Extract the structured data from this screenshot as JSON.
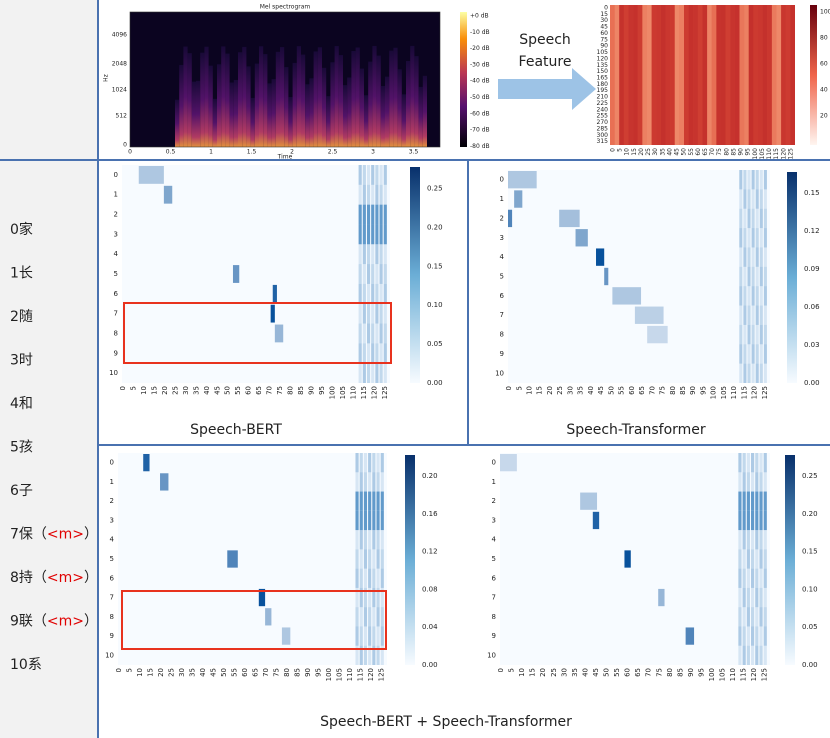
{
  "spectrogram": {
    "title": "Mel spectrogram",
    "y_label": "Hz",
    "x_label": "Time",
    "yticks": [
      "4096",
      "2048",
      "1024",
      "512",
      "0"
    ],
    "xticks": [
      "0",
      "0.5",
      "1",
      "1.5",
      "2",
      "2.5",
      "3",
      "3.5"
    ],
    "colorbar": [
      "+0 dB",
      "-10 dB",
      "-20 dB",
      "-30 dB",
      "-40 dB",
      "-50 dB",
      "-60 dB",
      "-70 dB",
      "-80 dB"
    ]
  },
  "arrow_label": [
    "Speech",
    "Feature"
  ],
  "feature": {
    "yticks": [
      "0",
      "15",
      "30",
      "45",
      "60",
      "75",
      "90",
      "105",
      "120",
      "135",
      "150",
      "165",
      "180",
      "195",
      "210",
      "225",
      "240",
      "255",
      "270",
      "285",
      "300",
      "315"
    ],
    "xticks": [
      "0",
      "5",
      "10",
      "15",
      "20",
      "25",
      "30",
      "35",
      "40",
      "45",
      "50",
      "55",
      "60",
      "65",
      "70",
      "75",
      "80",
      "85",
      "90",
      "95",
      "100",
      "105",
      "110",
      "115",
      "120",
      "125"
    ],
    "colorbar": [
      "100",
      "80",
      "60",
      "40",
      "20"
    ]
  },
  "tokens": [
    {
      "text": "0家"
    },
    {
      "text": "1长"
    },
    {
      "text": "2随"
    },
    {
      "text": "3时"
    },
    {
      "text": "4和"
    },
    {
      "text": "5孩"
    },
    {
      "text": "6子"
    },
    {
      "text": "7保",
      "mask": "<m>"
    },
    {
      "text": "8持",
      "mask": "<m>"
    },
    {
      "text": "9联",
      "mask": "<m>"
    },
    {
      "text": "10系"
    }
  ],
  "mask_brackets": [
    "（",
    "）"
  ],
  "heatmap_rows": [
    "0",
    "1",
    "2",
    "3",
    "4",
    "5",
    "6",
    "7",
    "8",
    "9",
    "10"
  ],
  "heatmap_cols": [
    "0",
    "5",
    "10",
    "15",
    "20",
    "25",
    "30",
    "35",
    "40",
    "45",
    "50",
    "55",
    "60",
    "65",
    "70",
    "75",
    "80",
    "85",
    "90",
    "95",
    "100",
    "105",
    "110",
    "115",
    "120",
    "125"
  ],
  "panels": [
    {
      "caption": "Speech-BERT",
      "colorbar": [
        "0.25",
        "0.20",
        "0.15",
        "0.10",
        "0.05",
        "0.00"
      ]
    },
    {
      "caption": "Speech-Transformer",
      "colorbar": [
        "0.15",
        "0.12",
        "0.09",
        "0.06",
        "0.03",
        "0.00"
      ]
    },
    {
      "colorbar": [
        "0.20",
        "0.16",
        "0.12",
        "0.08",
        "0.04",
        "0.00"
      ]
    },
    {
      "colorbar": [
        "0.25",
        "0.20",
        "0.15",
        "0.10",
        "0.05",
        "0.00"
      ]
    }
  ],
  "bottom_caption": "Speech-BERT + Speech-Transformer"
}
